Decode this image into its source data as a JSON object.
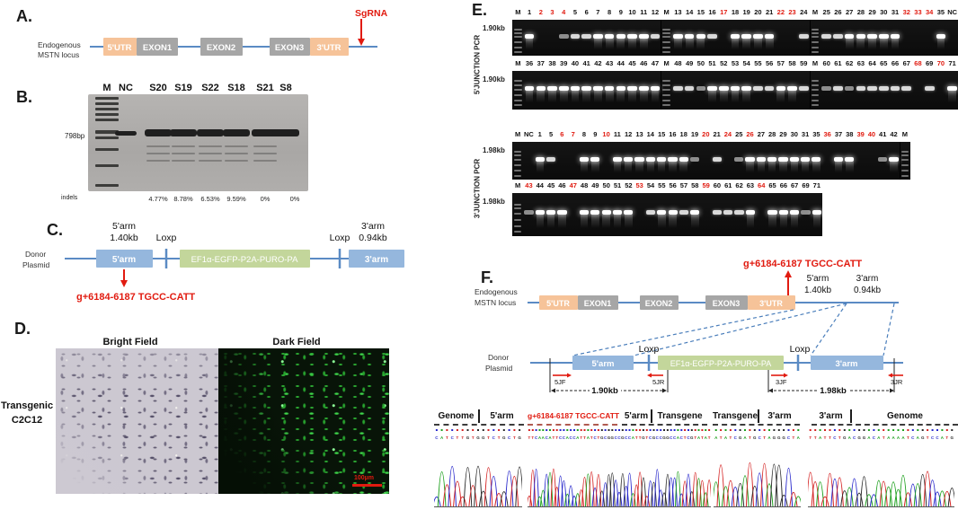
{
  "colors": {
    "utr": "#f6c399",
    "exon": "#a6a6a6",
    "arm": "#95b7dd",
    "cassette": "#c3d69b",
    "line": "#5b8bc4",
    "dashed": "#4a7ebb",
    "red": "#e11b10"
  },
  "panel_a": {
    "label": "A.",
    "locus_line1": "Endogenous",
    "locus_line2": "MSTN locus",
    "boxes": [
      {
        "text": "5'UTR"
      },
      {
        "text": "EXON1"
      },
      {
        "text": "EXON2"
      },
      {
        "text": "EXON3"
      },
      {
        "text": "3'UTR"
      }
    ],
    "sgrna": "SgRNA"
  },
  "panel_b": {
    "label": "B.",
    "size_label": "798bp",
    "lanes": [
      {
        "label": "M",
        "type": "marker"
      },
      {
        "label": "NC",
        "type": "thin"
      },
      {
        "label": "S20",
        "type": "thick",
        "sub": true
      },
      {
        "label": "S19",
        "type": "thick",
        "sub": true
      },
      {
        "label": "S22",
        "type": "thick",
        "sub": true
      },
      {
        "label": "S18",
        "type": "thick",
        "sub": true
      },
      {
        "label": "S21",
        "type": "thick",
        "sub": true
      },
      {
        "label": "S8",
        "type": "thick",
        "sub": false
      }
    ],
    "indels_label": "indels",
    "indels": [
      "4.77%",
      "8.78%",
      "6.53%",
      "9.59%",
      "0%",
      "0%"
    ]
  },
  "panel_c": {
    "label": "C.",
    "plasmid_line1": "Donor",
    "plasmid_line2": "Plasmid",
    "arm5_name": "5'arm",
    "arm5_size": "1.40kb",
    "loxp1": "Loxp",
    "loxp2": "Loxp",
    "cassette": "EF1α-EGFP-P2A-PURO-PA",
    "arm3_name": "3'arm",
    "arm3_size": "0.94kb",
    "mutation": "g+6184-6187 TGCC-CATT"
  },
  "panel_d": {
    "label": "D.",
    "row_line1": "Transgenic",
    "row_line2": "C2C12",
    "bright_title": "Bright Field",
    "dark_title": "Dark Field",
    "scalebar": "100µm"
  },
  "panel_e": {
    "label": "E.",
    "side_labels": [
      "5'JUNCTION PCR",
      "3'JUNCTION PCR"
    ],
    "rows": [
      {
        "size": "1.90kb",
        "lanes": [
          [
            "M",
            "m"
          ],
          [
            "1",
            3
          ],
          [
            "2",
            0,
            1
          ],
          [
            "3",
            0,
            1
          ],
          [
            "4",
            1,
            1
          ],
          [
            "5",
            2
          ],
          [
            "6",
            2
          ],
          [
            "7",
            3
          ],
          [
            "8",
            3
          ],
          [
            "9",
            3
          ],
          [
            "10",
            3
          ],
          [
            "11",
            3
          ],
          [
            "12",
            2
          ],
          [
            "M",
            "m"
          ],
          [
            "13",
            3
          ],
          [
            "14",
            3
          ],
          [
            "15",
            3
          ],
          [
            "16",
            2
          ],
          [
            "17",
            0,
            1
          ],
          [
            "18",
            3
          ],
          [
            "19",
            3
          ],
          [
            "20",
            3
          ],
          [
            "21",
            3
          ],
          [
            "22",
            0,
            1
          ],
          [
            "23",
            0,
            1
          ],
          [
            "24",
            2
          ],
          [
            "M",
            "m"
          ],
          [
            "25",
            2
          ],
          [
            "26",
            2
          ],
          [
            "27",
            3
          ],
          [
            "28",
            3
          ],
          [
            "29",
            3
          ],
          [
            "30",
            3
          ],
          [
            "31",
            3
          ],
          [
            "32",
            0,
            1
          ],
          [
            "33",
            0,
            1
          ],
          [
            "34",
            0,
            1
          ],
          [
            "35",
            3
          ],
          [
            "NC",
            0
          ]
        ]
      },
      {
        "size": "1.90kb",
        "lanes": [
          [
            "M",
            "m"
          ],
          [
            "36",
            3
          ],
          [
            "37",
            3
          ],
          [
            "38",
            3
          ],
          [
            "39",
            3
          ],
          [
            "40",
            3
          ],
          [
            "41",
            3
          ],
          [
            "42",
            3
          ],
          [
            "43",
            3
          ],
          [
            "44",
            3
          ],
          [
            "45",
            3
          ],
          [
            "46",
            3
          ],
          [
            "47",
            3
          ],
          [
            "M",
            "m"
          ],
          [
            "48",
            2
          ],
          [
            "49",
            2
          ],
          [
            "50",
            1
          ],
          [
            "51",
            3
          ],
          [
            "52",
            3
          ],
          [
            "53",
            3
          ],
          [
            "54",
            3
          ],
          [
            "55",
            2
          ],
          [
            "56",
            2
          ],
          [
            "57",
            3
          ],
          [
            "58",
            3
          ],
          [
            "59",
            2
          ],
          [
            "M",
            "m"
          ],
          [
            "60",
            1
          ],
          [
            "61",
            2
          ],
          [
            "62",
            1
          ],
          [
            "63",
            2
          ],
          [
            "64",
            2
          ],
          [
            "65",
            2
          ],
          [
            "66",
            2
          ],
          [
            "67",
            2
          ],
          [
            "68",
            0,
            1
          ],
          [
            "69",
            2
          ],
          [
            "70",
            0,
            1
          ],
          [
            "71",
            3
          ]
        ]
      },
      {
        "size": "1.98kb",
        "lanes": [
          [
            "M",
            "m"
          ],
          [
            "NC",
            0
          ],
          [
            "1",
            3
          ],
          [
            "5",
            2
          ],
          [
            "6",
            0,
            1
          ],
          [
            "7",
            0,
            1
          ],
          [
            "8",
            3
          ],
          [
            "9",
            3
          ],
          [
            "10",
            0,
            1
          ],
          [
            "11",
            3
          ],
          [
            "12",
            3
          ],
          [
            "13",
            3
          ],
          [
            "14",
            3
          ],
          [
            "15",
            3
          ],
          [
            "16",
            3
          ],
          [
            "18",
            3
          ],
          [
            "19",
            1
          ],
          [
            "20",
            0,
            1
          ],
          [
            "21",
            2
          ],
          [
            "24",
            0,
            1
          ],
          [
            "25",
            1
          ],
          [
            "26",
            3,
            1
          ],
          [
            "27",
            3
          ],
          [
            "28",
            3
          ],
          [
            "29",
            3
          ],
          [
            "30",
            3
          ],
          [
            "31",
            3
          ],
          [
            "35",
            3
          ],
          [
            "36",
            0,
            1
          ],
          [
            "37",
            3
          ],
          [
            "38",
            3
          ],
          [
            "39",
            0,
            1
          ],
          [
            "40",
            0,
            1
          ],
          [
            "41",
            1
          ],
          [
            "42",
            3
          ],
          [
            "M",
            "m"
          ]
        ]
      },
      {
        "size": "1.98kb",
        "lanes": [
          [
            "M",
            "m"
          ],
          [
            "43",
            1,
            1
          ],
          [
            "44",
            3
          ],
          [
            "45",
            3
          ],
          [
            "46",
            3
          ],
          [
            "47",
            0,
            1
          ],
          [
            "48",
            3
          ],
          [
            "49",
            3
          ],
          [
            "50",
            3
          ],
          [
            "51",
            3
          ],
          [
            "52",
            3
          ],
          [
            "53",
            0,
            1
          ],
          [
            "54",
            2
          ],
          [
            "55",
            3
          ],
          [
            "56",
            3
          ],
          [
            "57",
            2
          ],
          [
            "58",
            3
          ],
          [
            "59",
            0,
            1
          ],
          [
            "60",
            2
          ],
          [
            "61",
            2
          ],
          [
            "62",
            2
          ],
          [
            "63",
            3
          ],
          [
            "64",
            0,
            1
          ],
          [
            "65",
            3
          ],
          [
            "66",
            3
          ],
          [
            "67",
            3
          ],
          [
            "69",
            1
          ],
          [
            "71",
            3
          ]
        ]
      }
    ]
  },
  "panel_f": {
    "label": "F.",
    "mutation": "g+6184-6187 TGCC-CATT",
    "arm5_name": "5'arm",
    "arm5_size": "1.40kb",
    "arm3_name": "3'arm",
    "arm3_size": "0.94kb",
    "locus_line1": "Endogenous",
    "locus_line2": "MSTN locus",
    "boxes": [
      {
        "text": "5'UTR"
      },
      {
        "text": "EXON1"
      },
      {
        "text": "EXON2"
      },
      {
        "text": "EXON3"
      },
      {
        "text": "3'UTR"
      }
    ],
    "plasmid_line1": "Donor",
    "plasmid_line2": "Plasmid",
    "donor_arm5": "5'arm",
    "loxp1": "Loxp",
    "loxp2": "Loxp",
    "cassette": "EF1α-EGFP-P2A-PURO-PA",
    "donor_arm3": "3'arm",
    "primers": [
      "5JF",
      "5JR",
      "3JF",
      "3JR"
    ],
    "span5": "1.90kb",
    "span3": "1.98kb"
  },
  "chromatogram": {
    "label_groups": [
      {
        "parts": [
          "Genome",
          "5'arm"
        ],
        "red": false
      },
      {
        "parts": [
          "g+6184-6187 TGCC-CATT"
        ],
        "red": true
      },
      {
        "parts": [
          "5'arm",
          "Transgene"
        ],
        "red": false
      },
      {
        "parts": [
          "Transgene",
          "3'arm"
        ],
        "red": false
      },
      {
        "parts": [
          "3'arm",
          "Genome"
        ],
        "red": false
      }
    ],
    "blocks": [
      {
        "bases": "CATCTTGTGGTCTGCTG"
      },
      {
        "bases": "TTCAACATTCCACCATTATCTGCGGCCGCCATTGTCGCCGGCCACTCGTATAT"
      },
      {
        "bases": "ATATCGATGCTAGGGCTA"
      },
      {
        "bases": "TTATTCTGACGGACATAAAATCAGTCCATG"
      }
    ]
  }
}
